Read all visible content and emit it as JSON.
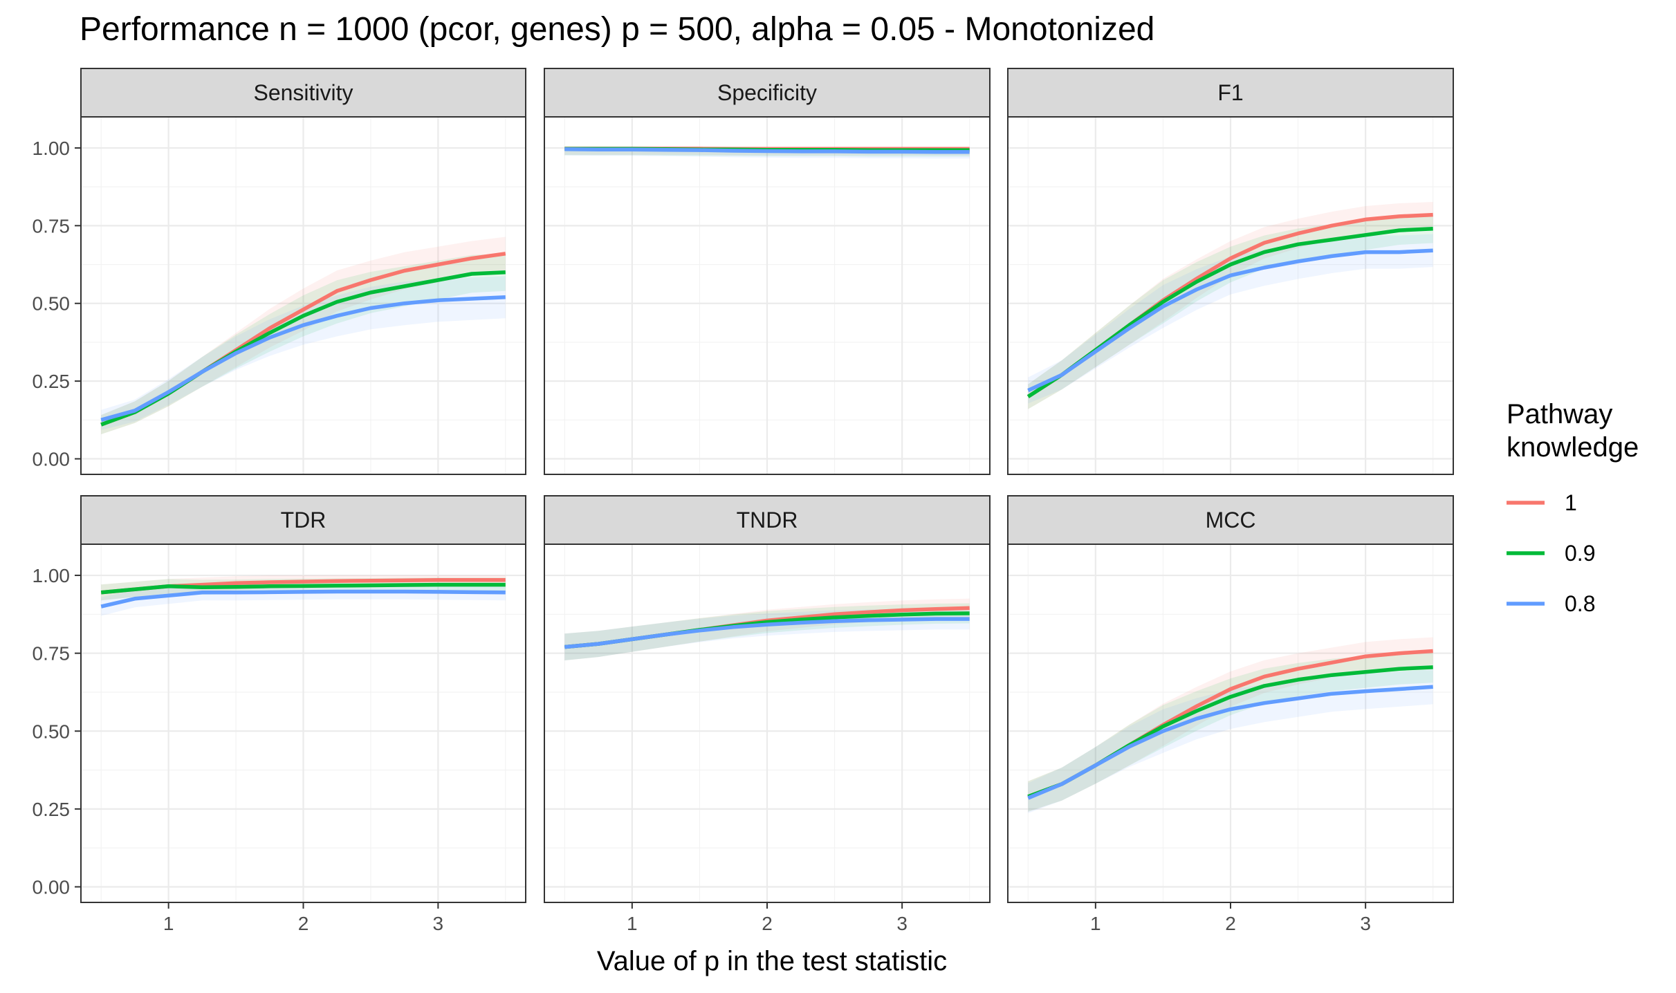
{
  "chart_data": {
    "type": "line",
    "title": "Performance n = 1000 (pcor, genes) p = 500, alpha = 0.05 - Monotonized",
    "xlabel": "Value of p in the test statistic",
    "ylabel": "",
    "xlim": [
      0.35,
      3.65
    ],
    "ylim": [
      -0.05,
      1.1
    ],
    "x_ticks": [
      1,
      2,
      3
    ],
    "y_ticks": [
      0,
      0.25,
      0.5,
      0.75,
      1
    ],
    "x_tick_labels": [
      "1",
      "2",
      "3"
    ],
    "y_tick_labels": [
      "0.00",
      "0.25",
      "0.50",
      "0.75",
      "1.00"
    ],
    "grid": true,
    "facets": [
      "Sensitivity",
      "Specificity",
      "F1",
      "TDR",
      "TNDR",
      "MCC"
    ],
    "legend": {
      "title_line1": "Pathway",
      "title_line2": "knowledge",
      "position": "right",
      "entries": [
        "1",
        "0.9",
        "0.8"
      ]
    },
    "series_colors": [
      "#F8766D",
      "#00BA38",
      "#619CFF"
    ],
    "x": [
      0.5,
      0.75,
      1,
      1.25,
      1.5,
      1.75,
      2,
      2.25,
      2.5,
      2.75,
      3,
      3.25,
      3.5
    ],
    "panels": [
      {
        "facet": "Sensitivity",
        "series": [
          {
            "name": "1",
            "values": [
              0.11,
              0.15,
              0.21,
              0.28,
              0.35,
              0.42,
              0.48,
              0.54,
              0.575,
              0.605,
              0.625,
              0.645,
              0.66
            ]
          },
          {
            "name": "0.9",
            "values": [
              0.11,
              0.15,
              0.21,
              0.28,
              0.345,
              0.405,
              0.46,
              0.505,
              0.535,
              0.555,
              0.575,
              0.595,
              0.6
            ]
          },
          {
            "name": "0.8",
            "values": [
              0.125,
              0.155,
              0.215,
              0.28,
              0.34,
              0.39,
              0.43,
              0.46,
              0.485,
              0.5,
              0.51,
              0.515,
              0.52
            ]
          }
        ]
      },
      {
        "facet": "Specificity",
        "series": [
          {
            "name": "1",
            "values": [
              0.998,
              0.998,
              0.998,
              0.998,
              0.998,
              0.997,
              0.997,
              0.997,
              0.997,
              0.997,
              0.997,
              0.997,
              0.997
            ]
          },
          {
            "name": "0.9",
            "values": [
              0.997,
              0.997,
              0.997,
              0.996,
              0.995,
              0.995,
              0.994,
              0.994,
              0.994,
              0.993,
              0.993,
              0.993,
              0.993
            ]
          },
          {
            "name": "0.8",
            "values": [
              0.996,
              0.995,
              0.995,
              0.994,
              0.993,
              0.991,
              0.99,
              0.989,
              0.989,
              0.988,
              0.988,
              0.987,
              0.987
            ]
          }
        ]
      },
      {
        "facet": "F1",
        "series": [
          {
            "name": "1",
            "values": [
              0.2,
              0.27,
              0.35,
              0.43,
              0.51,
              0.58,
              0.645,
              0.695,
              0.725,
              0.75,
              0.77,
              0.78,
              0.785
            ]
          },
          {
            "name": "0.9",
            "values": [
              0.2,
              0.27,
              0.35,
              0.43,
              0.505,
              0.57,
              0.625,
              0.665,
              0.69,
              0.705,
              0.72,
              0.735,
              0.74
            ]
          },
          {
            "name": "0.8",
            "values": [
              0.22,
              0.27,
              0.345,
              0.42,
              0.49,
              0.545,
              0.59,
              0.615,
              0.635,
              0.652,
              0.665,
              0.665,
              0.67
            ]
          }
        ]
      },
      {
        "facet": "TDR",
        "series": [
          {
            "name": "1",
            "values": [
              0.945,
              0.955,
              0.965,
              0.97,
              0.975,
              0.978,
              0.98,
              0.982,
              0.983,
              0.984,
              0.985,
              0.985,
              0.985
            ]
          },
          {
            "name": "0.9",
            "values": [
              0.945,
              0.955,
              0.965,
              0.962,
              0.963,
              0.965,
              0.966,
              0.967,
              0.968,
              0.969,
              0.97,
              0.97,
              0.97
            ]
          },
          {
            "name": "0.8",
            "values": [
              0.9,
              0.925,
              0.935,
              0.945,
              0.945,
              0.946,
              0.947,
              0.948,
              0.948,
              0.948,
              0.947,
              0.946,
              0.945
            ]
          }
        ]
      },
      {
        "facet": "TNDR",
        "series": [
          {
            "name": "1",
            "values": [
              0.77,
              0.78,
              0.795,
              0.81,
              0.825,
              0.84,
              0.855,
              0.865,
              0.875,
              0.882,
              0.888,
              0.892,
              0.895
            ]
          },
          {
            "name": "0.9",
            "values": [
              0.77,
              0.78,
              0.795,
              0.81,
              0.825,
              0.838,
              0.85,
              0.858,
              0.865,
              0.87,
              0.874,
              0.877,
              0.878
            ]
          },
          {
            "name": "0.8",
            "values": [
              0.77,
              0.78,
              0.795,
              0.81,
              0.823,
              0.834,
              0.842,
              0.848,
              0.853,
              0.856,
              0.858,
              0.86,
              0.86
            ]
          }
        ]
      },
      {
        "facet": "MCC",
        "series": [
          {
            "name": "1",
            "values": [
              0.29,
              0.33,
              0.39,
              0.455,
              0.52,
              0.58,
              0.635,
              0.675,
              0.7,
              0.72,
              0.74,
              0.75,
              0.757
            ]
          },
          {
            "name": "0.9",
            "values": [
              0.29,
              0.33,
              0.39,
              0.455,
              0.515,
              0.565,
              0.61,
              0.645,
              0.665,
              0.68,
              0.69,
              0.7,
              0.705
            ]
          },
          {
            "name": "0.8",
            "values": [
              0.285,
              0.33,
              0.39,
              0.45,
              0.5,
              0.54,
              0.57,
              0.59,
              0.605,
              0.62,
              0.628,
              0.635,
              0.642
            ]
          }
        ]
      }
    ]
  }
}
